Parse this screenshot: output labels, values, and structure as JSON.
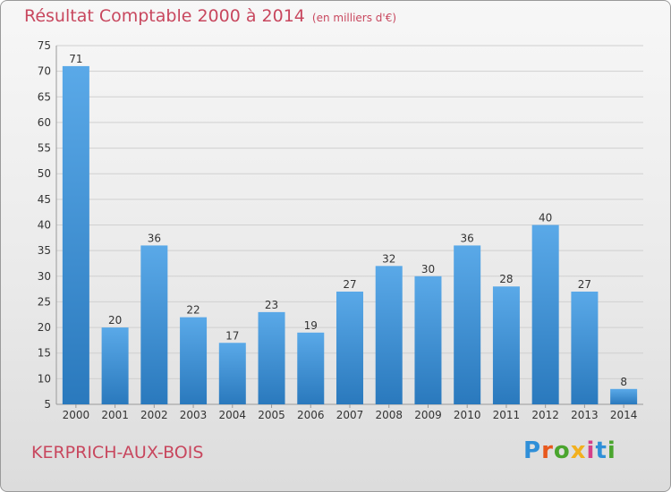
{
  "header": {
    "title": "Résultat Comptable 2000 à 2014",
    "unit": "(en milliers d'€)"
  },
  "footer": {
    "commune": "KERPRICH-AUX-BOIS",
    "logo_text": "Proxiti",
    "logo_colors": [
      "#2f8fd8",
      "#e8581c",
      "#4aa52e",
      "#f2b01e",
      "#d43f8a",
      "#2f8fd8",
      "#4aa52e"
    ]
  },
  "colors": {
    "title": "#c8475e",
    "bar_top": "#5aa9e8",
    "bar_bottom": "#2a79bd",
    "grid": "#d0d0d0",
    "axis_text": "#333333"
  },
  "chart_data": {
    "type": "bar",
    "title": "Résultat Comptable 2000 à 2014",
    "subtitle": "(en milliers d'€)",
    "categories": [
      "2000",
      "2001",
      "2002",
      "2003",
      "2004",
      "2005",
      "2006",
      "2007",
      "2008",
      "2009",
      "2010",
      "2011",
      "2012",
      "2013",
      "2014"
    ],
    "values": [
      71,
      20,
      36,
      22,
      17,
      23,
      19,
      27,
      32,
      30,
      36,
      28,
      40,
      27,
      8
    ],
    "ylim": [
      5,
      75
    ],
    "yticks": [
      5,
      10,
      15,
      20,
      25,
      30,
      35,
      40,
      45,
      50,
      55,
      60,
      65,
      70,
      75
    ],
    "xlabel": "",
    "ylabel": "",
    "grid": true
  }
}
